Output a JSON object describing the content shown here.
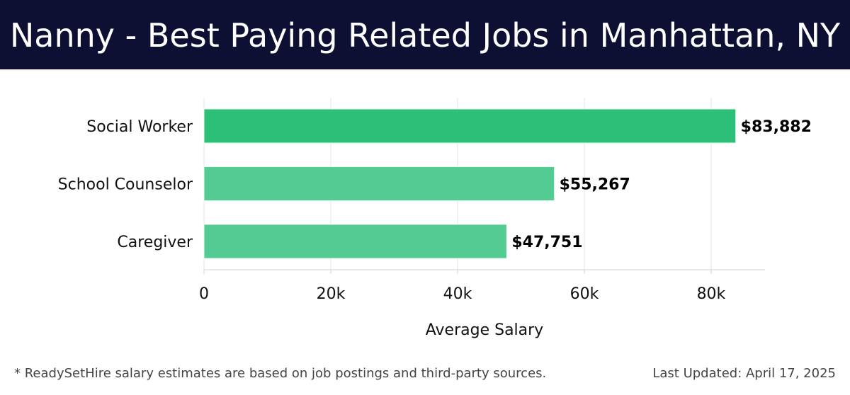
{
  "header": {
    "title": "Nanny - Best Paying Related Jobs in Manhattan, NY"
  },
  "chart_data": {
    "type": "bar",
    "orientation": "horizontal",
    "categories": [
      "Social Worker",
      "School Counselor",
      "Caregiver"
    ],
    "values": [
      83882,
      55267,
      47751
    ],
    "value_labels": [
      "$83,882",
      "$55,267",
      "$47,751"
    ],
    "xlabel": "Average Salary",
    "ylabel": "",
    "xlim": [
      0,
      88500
    ],
    "x_ticks": [
      0,
      20000,
      40000,
      60000,
      80000
    ],
    "x_tick_labels": [
      "0",
      "20k",
      "40k",
      "60k",
      "80k"
    ],
    "grid": true,
    "colors": {
      "highlight": "#2bbf78",
      "default": "#55cb94"
    }
  },
  "footer": {
    "note": "* ReadySetHire salary estimates are based on job postings and third-party sources.",
    "updated": "Last Updated: April 17, 2025"
  }
}
